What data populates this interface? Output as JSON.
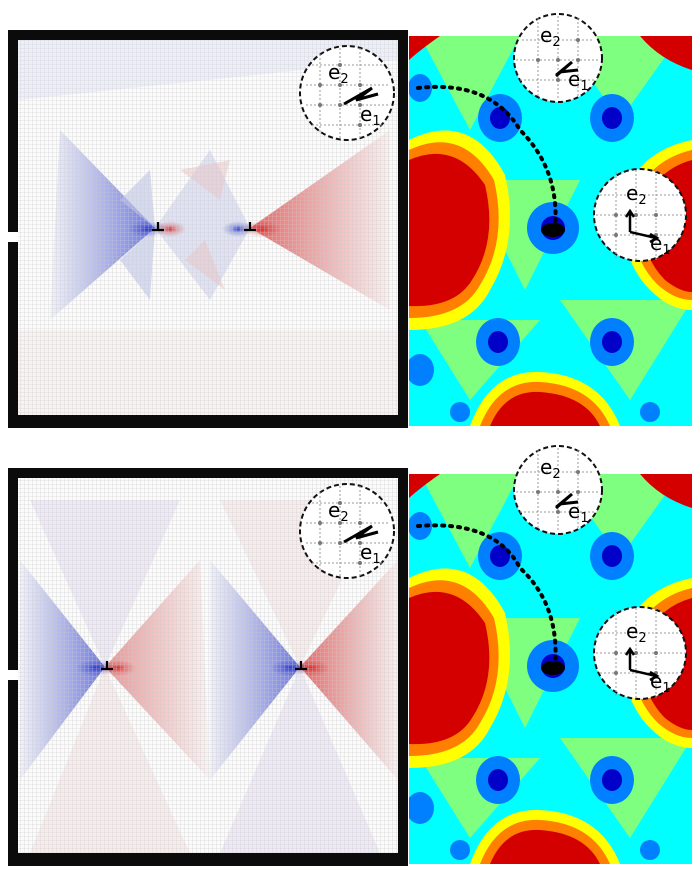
{
  "figure": {
    "label_e1": "e",
    "label_e2": "e",
    "sub_1": "1",
    "sub_2": "2",
    "colors": {
      "frame": "#0b0b0b",
      "red": "#d40000",
      "orange": "#ff7f00",
      "yellow": "#ffff00",
      "green": "#7fff7f",
      "cyan": "#00ffff",
      "blue": "#0080ff",
      "navy": "#0000c8",
      "dislocation_red": "#e02020",
      "dislocation_blue": "#2030d0"
    }
  }
}
